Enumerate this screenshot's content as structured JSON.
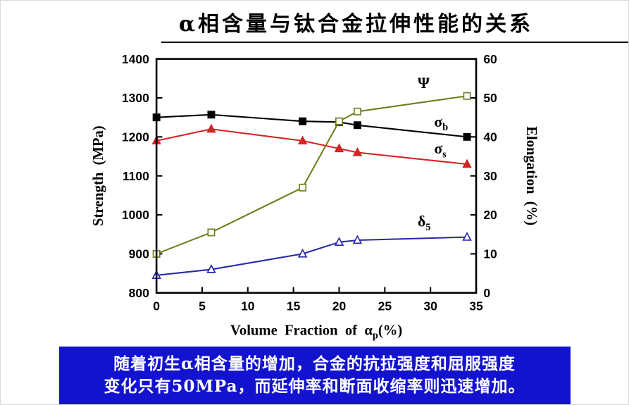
{
  "title": "α相含量与钛合金拉伸性能的关系",
  "caption": {
    "lines": [
      "随着初生α相含量的增加，合金的抗拉强度和屈服强度",
      "变化只有50MPa，而延伸率和断面收缩率则迅速增加。"
    ],
    "background_color": "#1313cf",
    "text_color": "#ffffff"
  },
  "chart_data": {
    "type": "line",
    "title": "",
    "xlabel": {
      "main": "Volume Fraction of α",
      "sub": "p",
      "suffix": "(%)"
    },
    "ylabel_left": "Strength (MPa)",
    "ylabel_right": "Elongation (%)",
    "xlim": [
      0,
      35
    ],
    "xticks": [
      0,
      5,
      10,
      15,
      20,
      25,
      30,
      35
    ],
    "ylim_left": [
      800,
      1400
    ],
    "yticks_left": [
      800,
      900,
      1000,
      1100,
      1200,
      1300,
      1400
    ],
    "ylim_right": [
      0,
      60
    ],
    "yticks_right": [
      0,
      10,
      20,
      30,
      40,
      50,
      60
    ],
    "grid": false,
    "legend_position": "inline-labels",
    "x": [
      0,
      6,
      16,
      20,
      22,
      34
    ],
    "series": [
      {
        "id": "sigma-b",
        "name": "σb",
        "label": {
          "text": "σ",
          "sub": "b"
        },
        "axis": "left",
        "color": "#000000",
        "marker": "square-filled",
        "values": [
          1250,
          1257,
          1240,
          1238,
          1230,
          1200
        ],
        "label_at": {
          "x": 30.4,
          "y": 1226
        }
      },
      {
        "id": "sigma-s",
        "name": "σs",
        "label": {
          "text": "σ",
          "sub": "s"
        },
        "axis": "left",
        "color": "#d62424",
        "marker": "triangle-filled",
        "values": [
          1190,
          1220,
          1190,
          1170,
          1160,
          1130
        ],
        "label_at": {
          "x": 30.4,
          "y": 1157
        }
      },
      {
        "id": "psi",
        "name": "Ψ",
        "label": {
          "text": "Ψ",
          "sub": ""
        },
        "axis": "right",
        "color": "#6f7d1c",
        "marker": "square-open",
        "values": [
          10,
          15.5,
          27,
          44,
          46.5,
          50.5
        ],
        "label_at": {
          "x": 28.6,
          "y": 52.5
        }
      },
      {
        "id": "delta-5",
        "name": "δ5",
        "label": {
          "text": "δ",
          "sub": "5"
        },
        "axis": "right",
        "color": "#2828a8",
        "marker": "triangle-open",
        "values": [
          4.5,
          6,
          10,
          13,
          13.5,
          14.3
        ],
        "label_at": {
          "x": 28.6,
          "y": 17
        }
      }
    ]
  }
}
